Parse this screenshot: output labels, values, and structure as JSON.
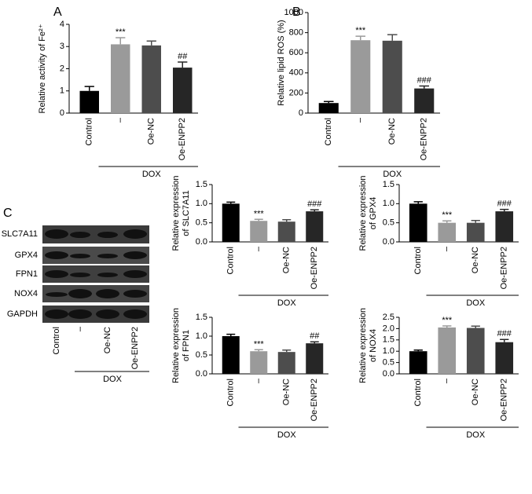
{
  "chart_data": [
    {
      "type": "bar",
      "panel": "A",
      "ylabel": [
        "Relative activity of Fe²⁺"
      ],
      "categories": [
        "Control",
        "–",
        "Oe-NC",
        "Oe-ENPP2"
      ],
      "values": [
        1.0,
        3.1,
        3.05,
        2.05
      ],
      "errors": [
        0.2,
        0.3,
        0.2,
        0.25
      ],
      "annotations": [
        null,
        "***",
        null,
        "##"
      ],
      "group": "DOX",
      "colors": [
        "#000000",
        "#9a9a9a",
        "#4d4d4d",
        "#262626"
      ],
      "ylim": [
        0,
        4
      ],
      "yticks": [
        0,
        1,
        2,
        3,
        4
      ]
    },
    {
      "type": "bar",
      "panel": "B",
      "ylabel": [
        "Relative lipid ROS (%)"
      ],
      "categories": [
        "Control",
        "–",
        "Oe-NC",
        "Oe-ENPP2"
      ],
      "values": [
        100,
        725,
        720,
        245
      ],
      "errors": [
        15,
        40,
        60,
        25
      ],
      "annotations": [
        null,
        "***",
        null,
        "###"
      ],
      "group": "DOX",
      "colors": [
        "#000000",
        "#9a9a9a",
        "#4d4d4d",
        "#262626"
      ],
      "ylim": [
        0,
        1000
      ],
      "yticks": [
        0,
        200,
        400,
        600,
        800,
        1000
      ]
    },
    {
      "type": "bar",
      "ylabel": [
        "Relative expression",
        "of SLC7A11"
      ],
      "categories": [
        "Control",
        "–",
        "Oe-NC",
        "Oe-ENPP2"
      ],
      "values": [
        1.0,
        0.55,
        0.53,
        0.8
      ],
      "errors": [
        0.04,
        0.04,
        0.05,
        0.04
      ],
      "annotations": [
        null,
        "***",
        null,
        "###"
      ],
      "group": "DOX",
      "colors": [
        "#000000",
        "#9a9a9a",
        "#4d4d4d",
        "#262626"
      ],
      "ylim": [
        0,
        1.5
      ],
      "yticks": [
        {
          "value": 0,
          "label": "0.0"
        },
        0.5,
        {
          "value": 1,
          "label": "1.0"
        },
        1.5
      ]
    },
    {
      "type": "bar",
      "ylabel": [
        "Relative expression",
        "of GPX4"
      ],
      "categories": [
        "Control",
        "–",
        "Oe-NC",
        "Oe-ENPP2"
      ],
      "values": [
        1.0,
        0.5,
        0.5,
        0.8
      ],
      "errors": [
        0.05,
        0.05,
        0.06,
        0.05
      ],
      "annotations": [
        null,
        "***",
        null,
        "###"
      ],
      "group": "DOX",
      "colors": [
        "#000000",
        "#9a9a9a",
        "#4d4d4d",
        "#262626"
      ],
      "ylim": [
        0,
        1.5
      ],
      "yticks": [
        {
          "value": 0,
          "label": "0.0"
        },
        0.5,
        {
          "value": 1,
          "label": "1.0"
        },
        1.5
      ]
    },
    {
      "type": "bar",
      "ylabel": [
        "Relative expression",
        "of FPN1"
      ],
      "categories": [
        "Control",
        "–",
        "Oe-NC",
        "Oe-ENPP2"
      ],
      "values": [
        1.0,
        0.6,
        0.58,
        0.81
      ],
      "errors": [
        0.05,
        0.04,
        0.05,
        0.04
      ],
      "annotations": [
        null,
        "***",
        null,
        "##"
      ],
      "group": "DOX",
      "colors": [
        "#000000",
        "#9a9a9a",
        "#4d4d4d",
        "#262626"
      ],
      "ylim": [
        0,
        1.5
      ],
      "yticks": [
        {
          "value": 0,
          "label": "0.0"
        },
        0.5,
        {
          "value": 1,
          "label": "1.0"
        },
        1.5
      ]
    },
    {
      "type": "bar",
      "ylabel": [
        "Relative expression",
        "of NOX4"
      ],
      "categories": [
        "Control",
        "–",
        "Oe-NC",
        "Oe-ENPP2"
      ],
      "values": [
        1.0,
        2.05,
        2.03,
        1.4
      ],
      "errors": [
        0.05,
        0.07,
        0.08,
        0.12
      ],
      "annotations": [
        null,
        "***",
        null,
        "###"
      ],
      "group": "DOX",
      "colors": [
        "#000000",
        "#9a9a9a",
        "#4d4d4d",
        "#262626"
      ],
      "ylim": [
        0,
        2.5
      ],
      "yticks": [
        {
          "value": 0,
          "label": "0.0"
        },
        0.5,
        {
          "value": 1,
          "label": "1.0"
        },
        1.5,
        {
          "value": 2,
          "label": "2.0"
        },
        2.5
      ]
    }
  ],
  "blot": {
    "panel": "C",
    "proteins": [
      "SLC7A11",
      "GPX4",
      "FPN1",
      "NOX4",
      "GAPDH"
    ],
    "lanes": [
      "Control",
      "–",
      "Oe-NC",
      "Oe-ENPP2"
    ],
    "group": "DOX"
  }
}
